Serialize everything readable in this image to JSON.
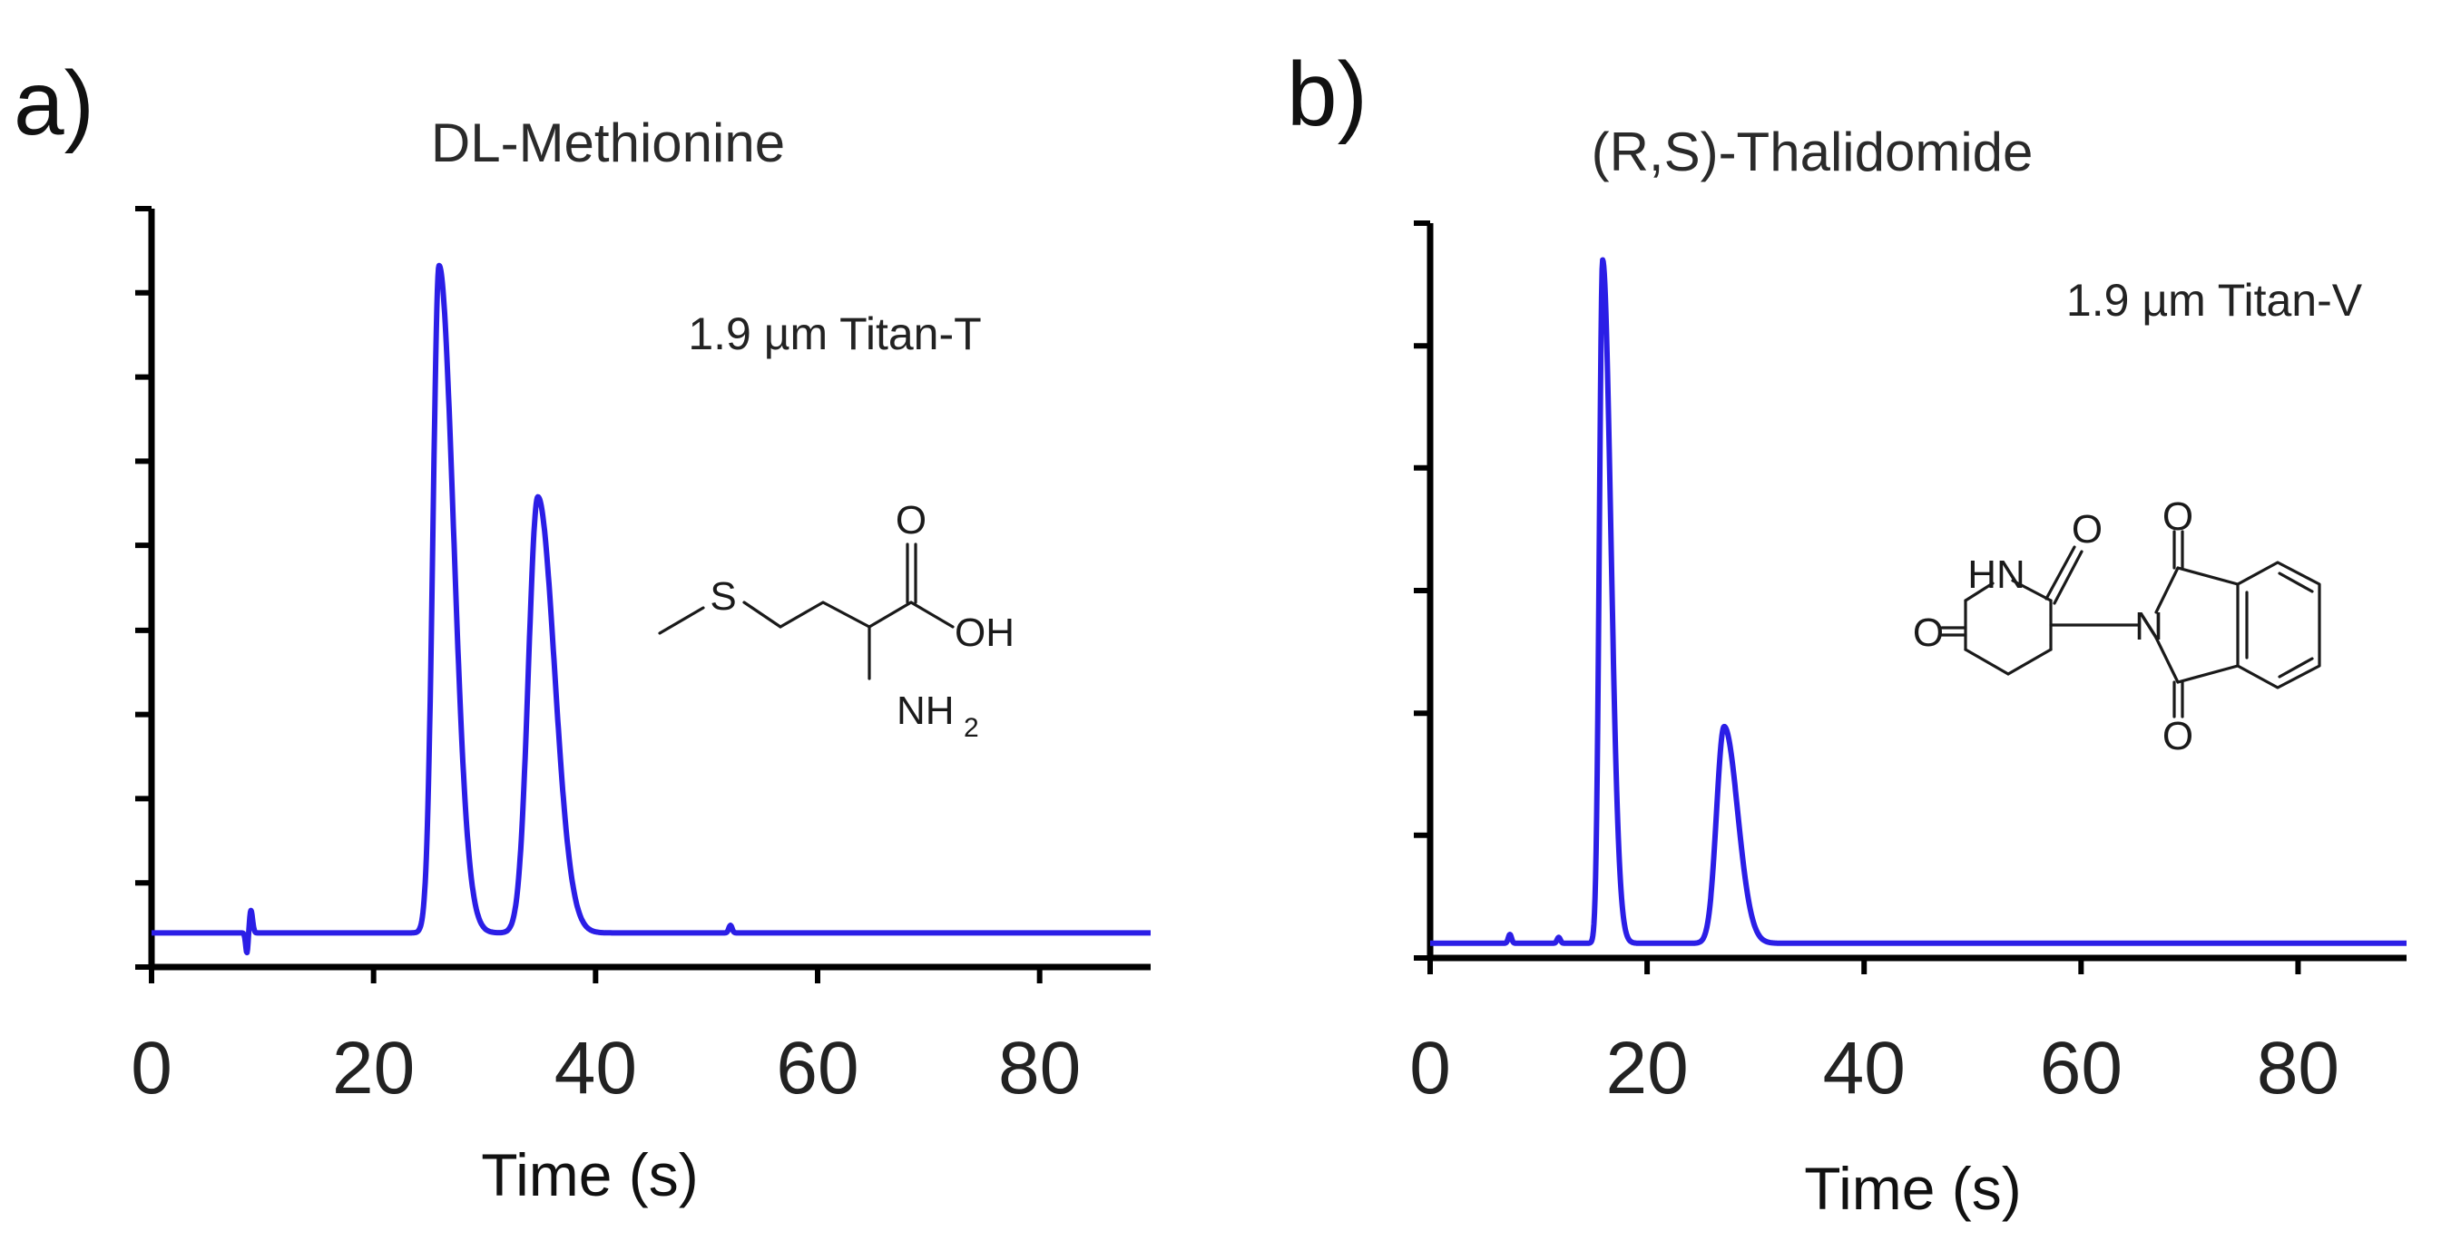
{
  "figure": {
    "panels": [
      {
        "label": "a)",
        "title": "DL-Methionine",
        "column": "1.9 µm Titan-T",
        "xlabel": "Time (s)"
      },
      {
        "label": "b)",
        "title": "(R,S)-Thalidomide",
        "column": "1.9 µm Titan-V",
        "xlabel": "Time (s)"
      }
    ],
    "structures": [
      {
        "name": "methionine",
        "atoms": {
          "S": "S",
          "O": "O",
          "OH": "OH",
          "NH": "NH",
          "sub2": "2"
        }
      },
      {
        "name": "thalidomide",
        "atoms": {
          "HN": "HN",
          "O1": "O",
          "O2": "O",
          "O3": "O",
          "O4": "O",
          "N": "N"
        }
      }
    ]
  },
  "colors": {
    "trace": "#2b1ee6",
    "axis": "#000000"
  },
  "chart_data": [
    {
      "type": "line",
      "title": "DL-Methionine",
      "annotation": "1.9 µm Titan-T",
      "xlabel": "Time (s)",
      "ylabel": "",
      "xlim": [
        0,
        90
      ],
      "ylim": [
        0,
        1
      ],
      "xticks": [
        0,
        20,
        40,
        60,
        80
      ],
      "xtick_labels": [
        "0",
        "20",
        "40",
        "60",
        "80"
      ],
      "yticks": [
        0,
        0.111,
        0.222,
        0.333,
        0.444,
        0.556,
        0.667,
        0.778,
        0.889,
        1.0
      ],
      "baseline": 0.045,
      "peaks": [
        {
          "center": 25.9,
          "height": 0.925,
          "width_left": 0.55,
          "width_right": 1.3
        },
        {
          "center": 34.8,
          "height": 0.62,
          "width_left": 0.85,
          "width_right": 1.5
        }
      ],
      "artifacts": [
        {
          "x": 8.6,
          "dy": -0.028,
          "up": 0.03
        },
        {
          "x": 51.8,
          "dy": 0,
          "up": 0.01
        }
      ]
    },
    {
      "type": "line",
      "title": "(R,S)-Thalidomide",
      "annotation": "1.9 µm Titan-V",
      "xlabel": "Time (s)",
      "ylabel": "",
      "xlim": [
        0,
        90
      ],
      "ylim": [
        0,
        1
      ],
      "xticks": [
        0,
        20,
        40,
        60,
        80
      ],
      "xtick_labels": [
        "0",
        "20",
        "40",
        "60",
        "80"
      ],
      "yticks": [
        0,
        0.167,
        0.333,
        0.5,
        0.667,
        0.833,
        1.0
      ],
      "baseline": 0.02,
      "peaks": [
        {
          "center": 15.9,
          "height": 0.95,
          "width_left": 0.3,
          "width_right": 0.75
        },
        {
          "center": 27.1,
          "height": 0.315,
          "width_left": 0.7,
          "width_right": 1.25
        }
      ],
      "artifacts": [
        {
          "x": 7.0,
          "dy": 0,
          "up": 0.012
        },
        {
          "x": 11.5,
          "dy": 0,
          "up": 0.008
        }
      ]
    }
  ]
}
